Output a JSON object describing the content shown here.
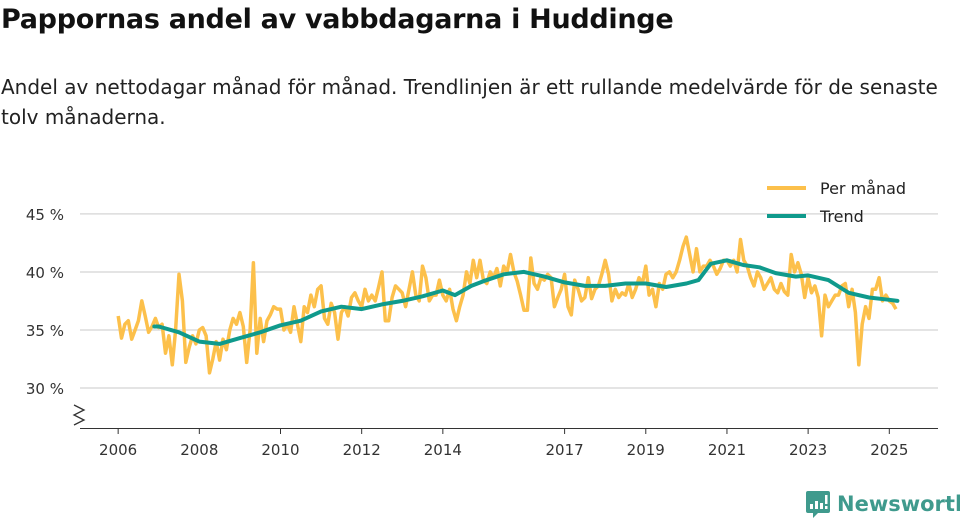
{
  "header": {
    "title": "Pappornas andel av vabbdagarna i Huddinge",
    "subtitle": "Andel av nettodagar månad för månad. Trendlinjen är ett rullande medelvärde för de senaste tolv månaderna."
  },
  "brand": {
    "name": "Newsworthy",
    "color": "#3f9a8d"
  },
  "chart_data": {
    "type": "line",
    "title": "Pappornas andel av vabbdagarna i Huddinge",
    "xlabel": "",
    "ylabel": "",
    "xlim": [
      2005.06,
      2026.2
    ],
    "ylim": [
      26.55,
      46.2
    ],
    "y_ticks": [
      {
        "value": 30,
        "label": "30 %"
      },
      {
        "value": 35,
        "label": "35 %"
      },
      {
        "value": 40,
        "label": "40 %"
      },
      {
        "value": 45,
        "label": "45 %"
      }
    ],
    "x_ticks": [
      {
        "value": 2006,
        "label": "2006"
      },
      {
        "value": 2008,
        "label": "2008"
      },
      {
        "value": 2010,
        "label": "2010"
      },
      {
        "value": 2012,
        "label": "2012"
      },
      {
        "value": 2014,
        "label": "2014"
      },
      {
        "value": 2017,
        "label": "2017"
      },
      {
        "value": 2019,
        "label": "2019"
      },
      {
        "value": 2021,
        "label": "2021"
      },
      {
        "value": 2023,
        "label": "2023"
      },
      {
        "value": 2025,
        "label": "2025"
      }
    ],
    "grid": true,
    "legend_position": "top-right",
    "series": [
      {
        "name": "Per månad",
        "color": "#fcc04b",
        "start": 2006.0,
        "step": 0.08333,
        "values": [
          36.2,
          34.3,
          35.5,
          35.8,
          34.2,
          35,
          35.8,
          37.5,
          36.2,
          34.8,
          35.3,
          36.0,
          35.2,
          35.5,
          33,
          34.5,
          32.0,
          35,
          39.8,
          37.5,
          32.2,
          33.5,
          34.5,
          33.8,
          35.0,
          35.2,
          34.5,
          31.3,
          32.5,
          34.0,
          32.4,
          34.2,
          33.3,
          35.0,
          36.0,
          35.5,
          36.5,
          35.3,
          32.2,
          35.0,
          40.8,
          33.0,
          36.0,
          34.0,
          35.8,
          36.3,
          37.0,
          36.8,
          36.8,
          35.0,
          35.5,
          34.8,
          37.0,
          35.5,
          34.0,
          37.0,
          36.5,
          38.0,
          37.0,
          38.5,
          38.8,
          36.0,
          35.5,
          37.3,
          36.5,
          34.2,
          36.5,
          37.0,
          36.2,
          37.8,
          38.2,
          37.5,
          37.0,
          38.5,
          37.5,
          38.0,
          37.5,
          38.7,
          40.0,
          35.8,
          35.8,
          37.8,
          38.8,
          38.5,
          38.2,
          37.0,
          38.5,
          40.0,
          38.0,
          37.5,
          40.5,
          39.5,
          37.5,
          38.0,
          38.0,
          39.3,
          38.0,
          37.5,
          38.5,
          36.8,
          35.8,
          37.0,
          38.0,
          40.0,
          39.0,
          41.0,
          39.5,
          41.0,
          39.3,
          39.0,
          40.0,
          39.5,
          40.3,
          38.8,
          40.5,
          40.0,
          41.5,
          40.0,
          39.2,
          38.0,
          36.7,
          36.7,
          41.2,
          39.0,
          38.5,
          39.5,
          39.3,
          39.8,
          39.5,
          37.0,
          37.8,
          38.5,
          39.8,
          37.0,
          36.3,
          39.3,
          38.5,
          37.5,
          37.8,
          39.5,
          37.7,
          38.5,
          38.8,
          39.8,
          41.0,
          39.8,
          37.5,
          38.5,
          37.8,
          38.2,
          38.0,
          39.0,
          37.8,
          38.5,
          39.5,
          39.0,
          40.5,
          38.0,
          38.5,
          37.0,
          39.0,
          38.5,
          39.8,
          40.0,
          39.5,
          40.0,
          41.0,
          42.2,
          43.0,
          41.5,
          40.0,
          42.0,
          40.0,
          40.5,
          40.5,
          41.0,
          40.5,
          39.8,
          40.3,
          41.0,
          41.0,
          40.5,
          41.0,
          40.0,
          42.8,
          41.0,
          40.5,
          39.5,
          38.8,
          40.0,
          39.5,
          38.5,
          39.0,
          39.5,
          38.5,
          38.2,
          39.0,
          38.3,
          38.0,
          41.5,
          40.0,
          40.8,
          39.8,
          37.8,
          39.5,
          38.2,
          38.8,
          37.8,
          34.5,
          38.0,
          37.0,
          37.5,
          38.0,
          38.0,
          38.8,
          39.0,
          37.0,
          38.5,
          36.5,
          32.0,
          35.5,
          37.0,
          36.0,
          38.5,
          38.5,
          39.5,
          37.5,
          38.0,
          37.5,
          37.3,
          36.8
        ]
      },
      {
        "name": "Trend",
        "color": "#0f9a8c",
        "points": [
          [
            2006.89,
            35.3
          ],
          [
            2007.0,
            35.3
          ],
          [
            2007.5,
            34.8
          ],
          [
            2008.0,
            34.0
          ],
          [
            2008.5,
            33.8
          ],
          [
            2009.0,
            34.3
          ],
          [
            2009.5,
            34.8
          ],
          [
            2010.0,
            35.4
          ],
          [
            2010.5,
            35.8
          ],
          [
            2011.0,
            36.6
          ],
          [
            2011.5,
            37.0
          ],
          [
            2012.0,
            36.8
          ],
          [
            2012.5,
            37.2
          ],
          [
            2013.0,
            37.5
          ],
          [
            2013.5,
            37.9
          ],
          [
            2014.0,
            38.4
          ],
          [
            2014.3,
            38.0
          ],
          [
            2014.7,
            38.8
          ],
          [
            2015.0,
            39.2
          ],
          [
            2015.5,
            39.8
          ],
          [
            2016.0,
            40.0
          ],
          [
            2016.5,
            39.6
          ],
          [
            2017.0,
            39.1
          ],
          [
            2017.5,
            38.8
          ],
          [
            2018.0,
            38.8
          ],
          [
            2018.5,
            39.0
          ],
          [
            2019.0,
            39.0
          ],
          [
            2019.5,
            38.7
          ],
          [
            2020.0,
            39.0
          ],
          [
            2020.3,
            39.3
          ],
          [
            2020.6,
            40.7
          ],
          [
            2021.0,
            41.0
          ],
          [
            2021.4,
            40.6
          ],
          [
            2021.8,
            40.4
          ],
          [
            2022.2,
            39.9
          ],
          [
            2022.7,
            39.6
          ],
          [
            2023.0,
            39.7
          ],
          [
            2023.5,
            39.3
          ],
          [
            2024.0,
            38.2
          ],
          [
            2024.5,
            37.8
          ],
          [
            2025.0,
            37.6
          ],
          [
            2025.2,
            37.5
          ]
        ]
      }
    ]
  }
}
